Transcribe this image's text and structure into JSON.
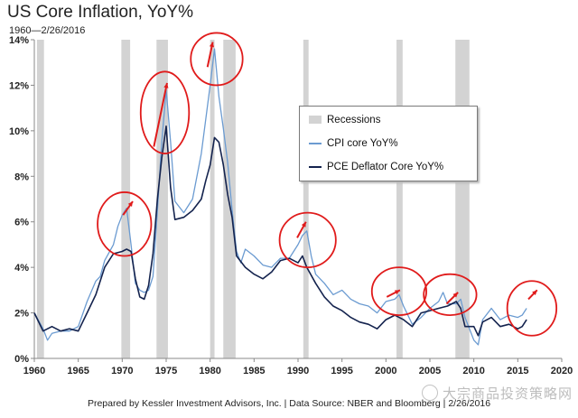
{
  "header": {
    "title": "US Core Inflation, YoY%",
    "subtitle": "1960—2/26/2016"
  },
  "footer": {
    "credit": "Prepared by Kessler Investment Advisors, Inc. | Data Source: NBER and Bloomberg | 2/26/2016",
    "watermark": "大宗商品投资策略网"
  },
  "colors": {
    "cpi": "#6b9bd1",
    "pce": "#14234e",
    "recession": "#d3d3d3",
    "annotation": "#e01b1b"
  },
  "chart_data": {
    "type": "line",
    "title": "US Core Inflation, YoY%",
    "xlabel": "",
    "ylabel": "",
    "xlim": [
      1960,
      2020
    ],
    "ylim": [
      0,
      14
    ],
    "x_ticks": [
      1960,
      1965,
      1970,
      1975,
      1980,
      1985,
      1990,
      1995,
      2000,
      2005,
      2010,
      2015,
      2020
    ],
    "y_ticks": [
      0,
      2,
      4,
      6,
      8,
      10,
      12,
      14
    ],
    "y_tick_labels": [
      "0%",
      "2%",
      "4%",
      "6%",
      "8%",
      "10%",
      "12%",
      "14%"
    ],
    "grid": false,
    "legend": {
      "position": "upper-center-right",
      "entries": [
        "Recessions",
        "CPI core YoY%",
        "PCE Deflator Core YoY%"
      ]
    },
    "recessions": [
      [
        1960.3,
        1961.1
      ],
      [
        1969.9,
        1970.9
      ],
      [
        1973.9,
        1975.2
      ],
      [
        1980.0,
        1980.5
      ],
      [
        1981.5,
        1982.9
      ],
      [
        1990.6,
        1991.2
      ],
      [
        2001.2,
        2001.9
      ],
      [
        2007.9,
        2009.5
      ]
    ],
    "series": [
      {
        "name": "CPI core YoY%",
        "x": [
          1960,
          1961,
          1961.5,
          1962,
          1963,
          1964,
          1965,
          1966,
          1967,
          1967.5,
          1968,
          1969,
          1969.5,
          1970,
          1970.5,
          1971,
          1971.5,
          1972,
          1972.5,
          1973,
          1973.5,
          1974,
          1974.5,
          1975,
          1975.5,
          1976,
          1977,
          1978,
          1979,
          1979.5,
          1980,
          1980.5,
          1981,
          1981.5,
          1982,
          1982.5,
          1983,
          1983.5,
          1984,
          1985,
          1986,
          1987,
          1988,
          1989,
          1990,
          1990.5,
          1991,
          1991.5,
          1992,
          1993,
          1994,
          1995,
          1996,
          1997,
          1998,
          1999,
          2000,
          2001,
          2001.5,
          2002,
          2003,
          2004,
          2005,
          2006,
          2006.5,
          2007,
          2008,
          2008.5,
          2009,
          2010,
          2010.5,
          2011,
          2012,
          2013,
          2014,
          2015,
          2015.5,
          2016
        ],
        "values": [
          2.0,
          1.3,
          0.8,
          1.1,
          1.2,
          1.2,
          1.4,
          2.5,
          3.4,
          3.6,
          4.3,
          5.0,
          5.8,
          6.3,
          6.6,
          5.0,
          3.3,
          3.0,
          2.9,
          3.0,
          3.6,
          6.5,
          9.5,
          11.8,
          9.5,
          6.9,
          6.4,
          7.0,
          9.0,
          10.5,
          12.0,
          13.6,
          11.5,
          10.1,
          8.6,
          6.5,
          4.7,
          4.2,
          4.8,
          4.5,
          4.1,
          4.0,
          4.4,
          4.4,
          5.0,
          5.4,
          5.6,
          4.5,
          3.7,
          3.3,
          2.8,
          3.0,
          2.6,
          2.4,
          2.3,
          2.0,
          2.5,
          2.6,
          2.8,
          2.3,
          1.5,
          1.8,
          2.2,
          2.5,
          2.9,
          2.4,
          2.4,
          2.6,
          1.8,
          0.8,
          0.6,
          1.7,
          2.2,
          1.7,
          1.9,
          1.8,
          1.9,
          2.2
        ]
      },
      {
        "name": "PCE Deflator Core YoY%",
        "x": [
          1960,
          1961,
          1962,
          1963,
          1964,
          1965,
          1966,
          1967,
          1968,
          1969,
          1970,
          1970.5,
          1971,
          1971.5,
          1972,
          1972.5,
          1973,
          1973.5,
          1974,
          1974.5,
          1975,
          1975.5,
          1976,
          1977,
          1978,
          1979,
          1979.5,
          1980,
          1980.5,
          1981,
          1981.5,
          1982,
          1982.5,
          1983,
          1984,
          1985,
          1986,
          1987,
          1988,
          1989,
          1990,
          1990.5,
          1991,
          1992,
          1993,
          1994,
          1995,
          1996,
          1997,
          1998,
          1999,
          2000,
          2001,
          2002,
          2003,
          2004,
          2005,
          2006,
          2007,
          2008,
          2008.5,
          2009,
          2010,
          2010.5,
          2011,
          2012,
          2013,
          2014,
          2015,
          2015.5,
          2016
        ],
        "values": [
          2.0,
          1.2,
          1.4,
          1.2,
          1.3,
          1.2,
          2.0,
          2.8,
          4.0,
          4.6,
          4.7,
          4.8,
          4.7,
          3.5,
          2.7,
          2.6,
          3.2,
          4.6,
          7.0,
          8.8,
          10.2,
          7.5,
          6.1,
          6.2,
          6.5,
          7.0,
          7.8,
          8.5,
          9.7,
          9.5,
          8.5,
          7.2,
          6.2,
          4.5,
          4.0,
          3.7,
          3.5,
          3.8,
          4.3,
          4.4,
          4.2,
          4.5,
          4.0,
          3.3,
          2.7,
          2.3,
          2.1,
          1.8,
          1.6,
          1.5,
          1.3,
          1.7,
          1.9,
          1.7,
          1.4,
          2.0,
          2.1,
          2.2,
          2.3,
          2.5,
          2.2,
          1.4,
          1.4,
          1.0,
          1.6,
          1.8,
          1.4,
          1.5,
          1.3,
          1.4,
          1.7
        ]
      }
    ],
    "annotations": [
      {
        "label": "circle-1970",
        "x_range": [
          1967.2,
          1973.3
        ],
        "y_range": [
          4.5,
          7.3
        ],
        "arrow": [
          [
            1970.1,
            6.3
          ],
          [
            1971.2,
            6.9
          ]
        ]
      },
      {
        "label": "circle-1974",
        "x_range": [
          1972.1,
          1977.6
        ],
        "y_range": [
          9.0,
          12.6
        ],
        "arrow": [
          [
            1973.6,
            9.3
          ],
          [
            1975.1,
            12.1
          ]
        ]
      },
      {
        "label": "circle-1980",
        "x_range": [
          1977.8,
          1983.7
        ],
        "y_range": [
          12.0,
          14.3
        ],
        "arrow": [
          [
            1979.7,
            12.8
          ],
          [
            1980.3,
            13.9
          ]
        ]
      },
      {
        "label": "circle-1990",
        "x_range": [
          1987.9,
          1994.3
        ],
        "y_range": [
          4.0,
          6.4
        ],
        "arrow": [
          [
            1989.9,
            5.3
          ],
          [
            1990.9,
            6.0
          ]
        ]
      },
      {
        "label": "circle-2001",
        "x_range": [
          1998.4,
          2004.6
        ],
        "y_range": [
          1.9,
          4.0
        ],
        "arrow": [
          [
            2000.1,
            2.7
          ],
          [
            2001.6,
            3.0
          ]
        ]
      },
      {
        "label": "circle-2008",
        "x_range": [
          2004.3,
          2010.3
        ],
        "y_range": [
          1.9,
          3.7
        ],
        "arrow": [
          [
            2006.9,
            2.4
          ],
          [
            2008.2,
            2.9
          ]
        ]
      },
      {
        "label": "circle-2015",
        "x_range": [
          2013.8,
          2019.4
        ],
        "y_range": [
          1.0,
          3.4
        ],
        "arrow": [
          [
            2016.2,
            2.6
          ],
          [
            2017.2,
            3.0
          ]
        ]
      }
    ]
  }
}
